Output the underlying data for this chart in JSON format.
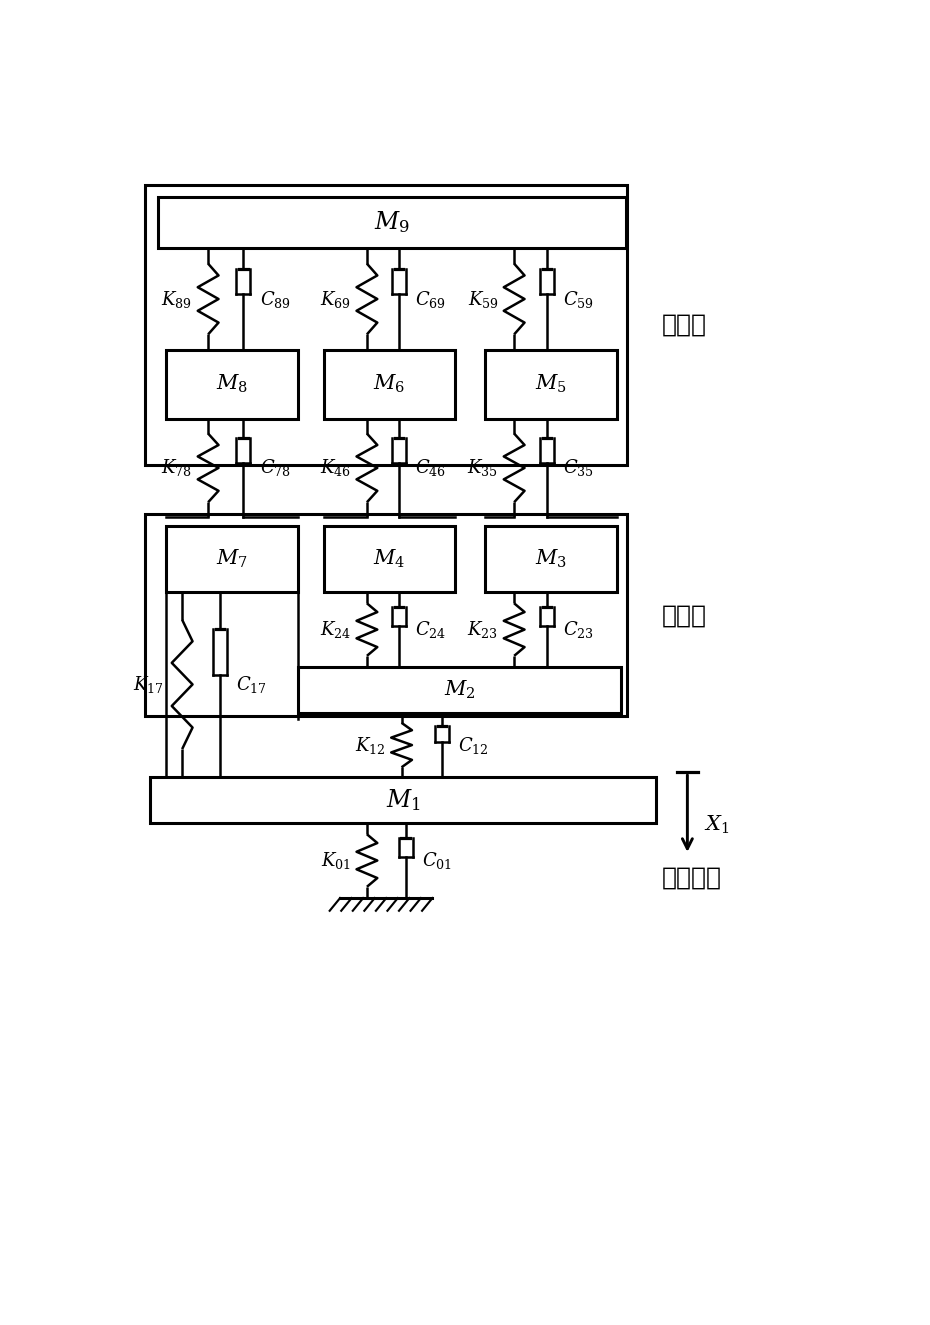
{
  "fig_width": 9.3,
  "fig_height": 13.25,
  "bg_color": "#ffffff",
  "line_color": "#000000",
  "lw": 1.8,
  "blw": 2.2,
  "fs": 14,
  "cfs": 16,
  "label_active": "主动件",
  "label_passive": "被动件",
  "label_target": "目标响应"
}
